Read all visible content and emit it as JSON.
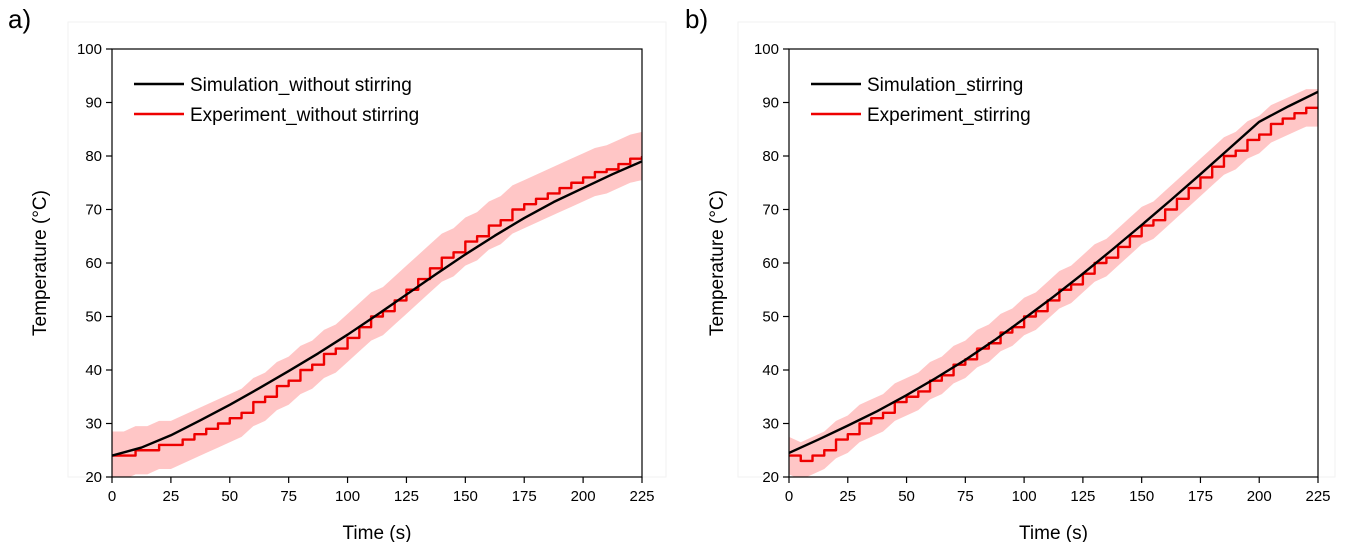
{
  "chart_data": [
    {
      "panel_label": "a)",
      "type": "line",
      "xlabel": "Time (s)",
      "ylabel": "Temperature (°C)",
      "xlim": [
        0,
        225
      ],
      "ylim": [
        20,
        100
      ],
      "xticks": [
        0,
        25,
        50,
        75,
        100,
        125,
        150,
        175,
        200,
        225
      ],
      "yticks": [
        20,
        30,
        40,
        50,
        60,
        70,
        80,
        90,
        100
      ],
      "legend_position": "top-left",
      "grid": false,
      "series": [
        {
          "name": "Simulation_without stirring",
          "color": "#000000",
          "x": [
            0,
            12.5,
            25,
            37.5,
            50,
            62.5,
            75,
            87.5,
            100,
            112.5,
            125,
            137.5,
            150,
            162.5,
            175,
            187.5,
            200,
            212.5,
            225
          ],
          "y": [
            24,
            25.5,
            27.8,
            30.6,
            33.5,
            36.6,
            39.8,
            43.1,
            46.6,
            50.3,
            54.1,
            57.9,
            61.6,
            65.1,
            68.4,
            71.4,
            74.0,
            76.6,
            79.0
          ]
        },
        {
          "name": "Experiment_without stirring",
          "color": "#ee0000",
          "band_color": "#ffb3b3",
          "band_width": 4.5,
          "x": [
            0,
            5,
            10,
            15,
            20,
            25,
            30,
            35,
            40,
            45,
            50,
            55,
            60,
            65,
            70,
            75,
            80,
            85,
            90,
            95,
            100,
            105,
            110,
            115,
            120,
            125,
            130,
            135,
            140,
            145,
            150,
            155,
            160,
            165,
            170,
            175,
            180,
            185,
            190,
            195,
            200,
            205,
            210,
            215,
            220,
            225
          ],
          "y": [
            24,
            24,
            25,
            25,
            26,
            26,
            27,
            28,
            29,
            30,
            31,
            32,
            34,
            35,
            37,
            38,
            40,
            41,
            43,
            44,
            46,
            48,
            50,
            51,
            53,
            55,
            57,
            59,
            61,
            62,
            64,
            65,
            67,
            68,
            70,
            71,
            72,
            73,
            74,
            75,
            76,
            77,
            77.5,
            78.5,
            79.5,
            80
          ]
        }
      ]
    },
    {
      "panel_label": "b)",
      "type": "line",
      "xlabel": "Time (s)",
      "ylabel": "Temperature (°C)",
      "xlim": [
        0,
        225
      ],
      "ylim": [
        20,
        100
      ],
      "xticks": [
        0,
        25,
        50,
        75,
        100,
        125,
        150,
        175,
        200,
        225
      ],
      "yticks": [
        20,
        30,
        40,
        50,
        60,
        70,
        80,
        90,
        100
      ],
      "legend_position": "top-left",
      "grid": false,
      "series": [
        {
          "name": "Simulation_stirring",
          "color": "#000000",
          "x": [
            0,
            12.5,
            25,
            37.5,
            50,
            62.5,
            75,
            87.5,
            100,
            112.5,
            125,
            137.5,
            150,
            162.5,
            175,
            187.5,
            200,
            212.5,
            225
          ],
          "y": [
            24.5,
            27.0,
            29.6,
            32.3,
            35.3,
            38.5,
            41.9,
            45.6,
            49.6,
            53.7,
            58.0,
            62.5,
            67.1,
            71.8,
            76.6,
            81.5,
            86.4,
            89.3,
            92.0
          ]
        },
        {
          "name": "Experiment_stirring",
          "color": "#ee0000",
          "band_color": "#ffb3b3",
          "band_width": 3.5,
          "x": [
            0,
            5,
            10,
            15,
            20,
            25,
            30,
            35,
            40,
            45,
            50,
            55,
            60,
            65,
            70,
            75,
            80,
            85,
            90,
            95,
            100,
            105,
            110,
            115,
            120,
            125,
            130,
            135,
            140,
            145,
            150,
            155,
            160,
            165,
            170,
            175,
            180,
            185,
            190,
            195,
            200,
            205,
            210,
            215,
            220,
            225
          ],
          "y": [
            24,
            23,
            24,
            25,
            27,
            28,
            30,
            31,
            32,
            34,
            35,
            36,
            38,
            39,
            41,
            42,
            44,
            45,
            47,
            48,
            50,
            51,
            53,
            55,
            56,
            58,
            60,
            61,
            63,
            65,
            67,
            68,
            70,
            72,
            74,
            76,
            78,
            80,
            81,
            83,
            84,
            86,
            87,
            88,
            89,
            89
          ]
        }
      ]
    }
  ]
}
